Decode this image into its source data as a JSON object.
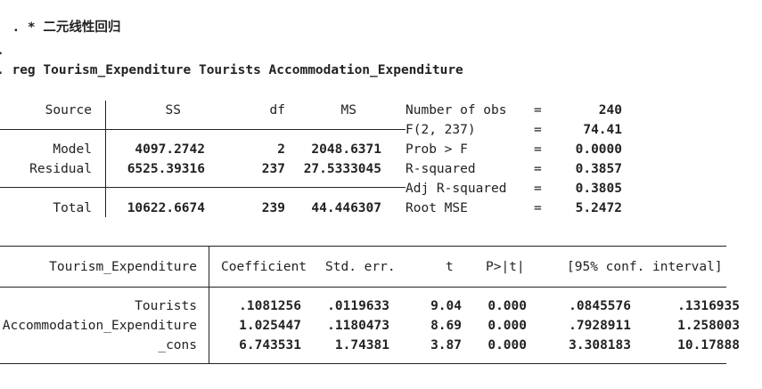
{
  "log": {
    "comment_line": ". * 二元线性回归",
    "blank_line": ".",
    "command_line": ". reg Tourism_Expenditure Tourists Accommodation_Expenditure"
  },
  "anova": {
    "headers": {
      "source": "Source",
      "ss": "SS",
      "df": "df",
      "ms": "MS"
    },
    "rows": [
      {
        "source": "Model",
        "ss": "4097.2742",
        "df": "2",
        "ms": "2048.6371"
      },
      {
        "source": "Residual",
        "ss": "6525.39316",
        "df": "237",
        "ms": "27.5333045"
      },
      {
        "source": "Total",
        "ss": "10622.6674",
        "df": "239",
        "ms": "44.446307"
      }
    ]
  },
  "stats": [
    {
      "label": "Number of obs",
      "eq": "=",
      "value": "240"
    },
    {
      "label": "F(2, 237)",
      "eq": "=",
      "value": "74.41"
    },
    {
      "label": "Prob > F",
      "eq": "=",
      "value": "0.0000"
    },
    {
      "label": "R-squared",
      "eq": "=",
      "value": "0.3857"
    },
    {
      "label": "Adj R-squared",
      "eq": "=",
      "value": "0.3805"
    },
    {
      "label": "Root MSE",
      "eq": "=",
      "value": "5.2472"
    }
  ],
  "coef": {
    "headers": {
      "depvar": "Tourism_Expenditure",
      "coef": "Coefficient",
      "se": "Std. err.",
      "t": "t",
      "p": "P>|t|",
      "ci": "[95% conf. interval]"
    },
    "rows": [
      {
        "var": "Tourists",
        "coef": ".1081256",
        "se": ".0119633",
        "t": "9.04",
        "p": "0.000",
        "lo": ".0845576",
        "hi": ".1316935"
      },
      {
        "var": "Accommodation_Expenditure",
        "coef": "1.025447",
        "se": ".1180473",
        "t": "8.69",
        "p": "0.000",
        "lo": ".7928911",
        "hi": "1.258003"
      },
      {
        "var": "_cons",
        "coef": "6.743531",
        "se": "1.74381",
        "t": "3.87",
        "p": "0.000",
        "lo": "3.308183",
        "hi": "10.17888"
      }
    ]
  }
}
